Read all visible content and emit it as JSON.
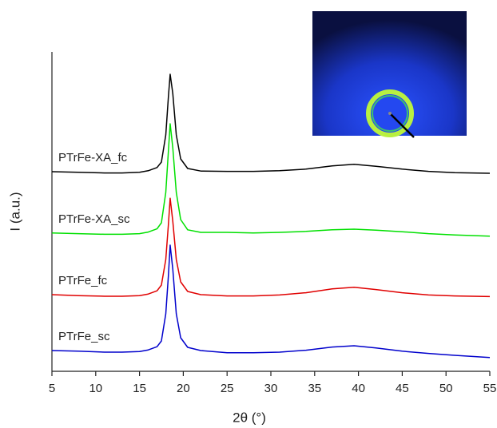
{
  "chart_data": {
    "type": "line",
    "x_label": "2θ (°)",
    "y_label": "I (a.u.)",
    "x": [
      5,
      8,
      11,
      13,
      15,
      16,
      17,
      17.5,
      18,
      18.3,
      18.5,
      18.8,
      19.2,
      19.7,
      20.5,
      22,
      25,
      28,
      31,
      34,
      37,
      39.5,
      42,
      45,
      48,
      51,
      55
    ],
    "xlim": [
      5,
      55
    ],
    "xticks": [
      5,
      10,
      15,
      20,
      25,
      30,
      35,
      40,
      45,
      50,
      55
    ],
    "ylim": [
      0,
      100
    ],
    "series": [
      {
        "name": "PTrFe-XA_fc",
        "color": "#000000",
        "values": [
          62.5,
          62.3,
          62.1,
          62.1,
          62.3,
          62.8,
          63.8,
          65.5,
          74,
          86,
          93,
          87,
          74,
          66.5,
          63.5,
          62.7,
          62.6,
          62.6,
          62.8,
          63.3,
          64.3,
          64.8,
          64.2,
          63.3,
          62.6,
          62.2,
          62
        ]
      },
      {
        "name": "PTrFe-XA_sc",
        "color": "#00e000",
        "values": [
          43.3,
          43.1,
          42.9,
          42.9,
          43.1,
          43.6,
          44.6,
          46.5,
          56,
          69,
          77.5,
          70,
          56,
          47.5,
          44.3,
          43.5,
          43.5,
          43.3,
          43.5,
          43.8,
          44.3,
          44.5,
          44.2,
          43.7,
          43.1,
          42.7,
          42.3
        ]
      },
      {
        "name": "PTrFe_fc",
        "color": "#e00000",
        "values": [
          24,
          23.7,
          23.5,
          23.5,
          23.7,
          24.2,
          25.2,
          27,
          35,
          46,
          54.2,
          47,
          35,
          28,
          25,
          24,
          23.6,
          23.6,
          23.9,
          24.6,
          25.8,
          26.3,
          25.6,
          24.6,
          23.9,
          23.6,
          23.4
        ]
      },
      {
        "name": "PTrFe_sc",
        "color": "#0000cc",
        "values": [
          6.5,
          6.3,
          6.0,
          6.0,
          6.2,
          6.7,
          7.7,
          9.5,
          18,
          30,
          39.5,
          32,
          18,
          10.5,
          7.5,
          6.5,
          5.8,
          5.8,
          6.0,
          6.6,
          7.6,
          8.0,
          7.3,
          6.3,
          5.6,
          5.0,
          4.3
        ]
      }
    ]
  }
}
